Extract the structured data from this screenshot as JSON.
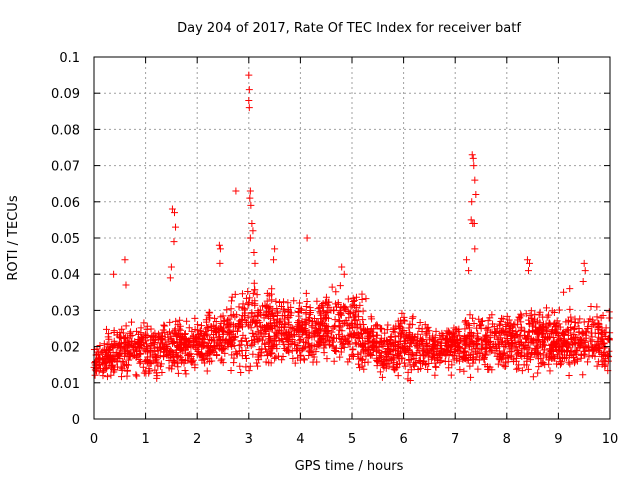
{
  "chart_data": {
    "type": "scatter",
    "title": "Day 204 of 2017, Rate Of TEC Index for receiver batf",
    "xlabel": "GPS time / hours",
    "ylabel": "ROTI / TECUs",
    "xlim": [
      0,
      10
    ],
    "ylim": [
      0,
      0.1
    ],
    "xticks": [
      "0",
      "1",
      "2",
      "3",
      "4",
      "5",
      "6",
      "7",
      "8",
      "9",
      "10"
    ],
    "yticks": [
      "0",
      "0.01",
      "0.02",
      "0.03",
      "0.04",
      "0.05",
      "0.06",
      "0.07",
      "0.08",
      "0.09",
      "0.1"
    ],
    "grid": true,
    "marker": "+",
    "color": "#ff0000",
    "point_count_estimate": 2500,
    "baseline_envelope": {
      "x": [
        0,
        0.5,
        1.0,
        1.5,
        2.0,
        2.5,
        3.0,
        3.5,
        4.0,
        4.5,
        5.0,
        5.5,
        6.0,
        6.5,
        7.0,
        7.5,
        8.0,
        8.5,
        9.0,
        9.5,
        10.0
      ],
      "low": [
        0.009,
        0.008,
        0.01,
        0.01,
        0.011,
        0.011,
        0.01,
        0.011,
        0.012,
        0.012,
        0.01,
        0.009,
        0.009,
        0.01,
        0.011,
        0.009,
        0.01,
        0.01,
        0.01,
        0.01,
        0.01
      ],
      "high": [
        0.022,
        0.028,
        0.027,
        0.028,
        0.028,
        0.033,
        0.038,
        0.035,
        0.033,
        0.036,
        0.038,
        0.028,
        0.03,
        0.026,
        0.028,
        0.03,
        0.032,
        0.033,
        0.03,
        0.032,
        0.03
      ]
    },
    "notable_points": [
      {
        "x": 0.38,
        "y": 0.04
      },
      {
        "x": 0.6,
        "y": 0.044
      },
      {
        "x": 0.62,
        "y": 0.037
      },
      {
        "x": 1.52,
        "y": 0.058
      },
      {
        "x": 1.56,
        "y": 0.057
      },
      {
        "x": 1.58,
        "y": 0.053
      },
      {
        "x": 1.55,
        "y": 0.049
      },
      {
        "x": 1.5,
        "y": 0.042
      },
      {
        "x": 1.48,
        "y": 0.039
      },
      {
        "x": 2.43,
        "y": 0.048
      },
      {
        "x": 2.45,
        "y": 0.047
      },
      {
        "x": 2.44,
        "y": 0.043
      },
      {
        "x": 2.75,
        "y": 0.063
      },
      {
        "x": 3.0,
        "y": 0.095
      },
      {
        "x": 3.01,
        "y": 0.091
      },
      {
        "x": 3.0,
        "y": 0.088
      },
      {
        "x": 3.01,
        "y": 0.086
      },
      {
        "x": 3.03,
        "y": 0.063
      },
      {
        "x": 3.02,
        "y": 0.061
      },
      {
        "x": 3.04,
        "y": 0.059
      },
      {
        "x": 3.06,
        "y": 0.054
      },
      {
        "x": 3.08,
        "y": 0.052
      },
      {
        "x": 3.03,
        "y": 0.05
      },
      {
        "x": 3.1,
        "y": 0.046
      },
      {
        "x": 3.12,
        "y": 0.043
      },
      {
        "x": 3.5,
        "y": 0.047
      },
      {
        "x": 3.48,
        "y": 0.044
      },
      {
        "x": 4.13,
        "y": 0.05
      },
      {
        "x": 4.8,
        "y": 0.042
      },
      {
        "x": 4.85,
        "y": 0.04
      },
      {
        "x": 7.33,
        "y": 0.073
      },
      {
        "x": 7.35,
        "y": 0.072
      },
      {
        "x": 7.36,
        "y": 0.07
      },
      {
        "x": 7.38,
        "y": 0.066
      },
      {
        "x": 7.4,
        "y": 0.062
      },
      {
        "x": 7.32,
        "y": 0.06
      },
      {
        "x": 7.31,
        "y": 0.055
      },
      {
        "x": 7.34,
        "y": 0.054
      },
      {
        "x": 7.37,
        "y": 0.054
      },
      {
        "x": 7.38,
        "y": 0.047
      },
      {
        "x": 7.22,
        "y": 0.044
      },
      {
        "x": 7.26,
        "y": 0.041
      },
      {
        "x": 8.4,
        "y": 0.044
      },
      {
        "x": 8.44,
        "y": 0.043
      },
      {
        "x": 8.42,
        "y": 0.041
      },
      {
        "x": 9.5,
        "y": 0.043
      },
      {
        "x": 9.52,
        "y": 0.041
      },
      {
        "x": 9.48,
        "y": 0.038
      },
      {
        "x": 9.22,
        "y": 0.036
      },
      {
        "x": 9.1,
        "y": 0.035
      }
    ]
  }
}
